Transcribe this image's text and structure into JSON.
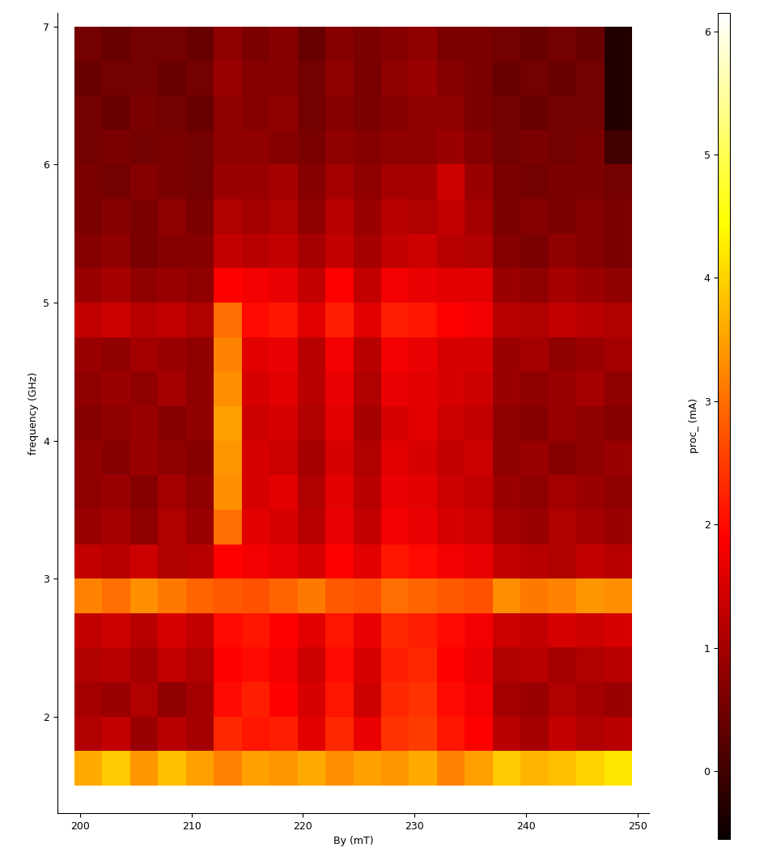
{
  "chart_data": {
    "type": "heatmap",
    "x_label": "By (mT)",
    "y_label": "frequency (GHz)",
    "colorbar_label": "proc_ (mA)",
    "xlim": [
      198,
      251
    ],
    "ylim": [
      1.3,
      7.1
    ],
    "xticks": [
      200,
      210,
      220,
      230,
      240,
      250
    ],
    "yticks": [
      2,
      3,
      4,
      5,
      6,
      7
    ],
    "colorbar_range": [
      -0.55,
      6.15
    ],
    "colorbar_ticks": [
      0,
      1,
      2,
      3,
      4,
      5,
      6
    ],
    "x_edges": [
      199.5,
      202,
      204.5,
      207,
      209.5,
      212,
      214.5,
      217,
      219.5,
      222,
      224.5,
      227,
      229.5,
      232,
      234.5,
      237,
      239.5,
      242,
      244.5,
      247,
      249.5
    ],
    "y_edges": [
      1.5,
      1.75,
      2.0,
      2.25,
      2.5,
      2.75,
      3.0,
      3.25,
      3.5,
      3.75,
      4.0,
      4.25,
      4.5,
      4.75,
      5.0,
      5.25,
      5.5,
      5.75,
      6.0,
      6.25,
      6.5,
      6.75,
      7.0
    ],
    "cells": [
      [
        3.6,
        3.9,
        3.4,
        3.8,
        3.5,
        3.2,
        3.5,
        3.4,
        3.6,
        3.3,
        3.5,
        3.4,
        3.6,
        3.2,
        3.5,
        3.9,
        3.7,
        3.8,
        4.0,
        4.2
      ],
      [
        1.1,
        1.3,
        0.9,
        1.2,
        1.0,
        2.3,
        2.1,
        2.2,
        1.6,
        2.3,
        1.7,
        2.4,
        2.5,
        2.1,
        1.9,
        1.2,
        1.0,
        1.3,
        1.1,
        1.2
      ],
      [
        1.0,
        0.9,
        1.1,
        0.8,
        1.0,
        2.0,
        2.2,
        1.9,
        1.5,
        2.1,
        1.4,
        2.3,
        2.4,
        2.0,
        1.8,
        1.0,
        0.9,
        1.1,
        1.0,
        0.9
      ],
      [
        1.1,
        1.2,
        1.0,
        1.3,
        1.1,
        1.9,
        2.0,
        1.8,
        1.4,
        2.0,
        1.5,
        2.2,
        2.3,
        1.9,
        1.7,
        1.1,
        1.2,
        1.0,
        1.1,
        1.2
      ],
      [
        1.3,
        1.4,
        1.2,
        1.5,
        1.3,
        2.0,
        2.1,
        1.9,
        1.6,
        2.1,
        1.7,
        2.3,
        2.2,
        2.0,
        1.8,
        1.4,
        1.3,
        1.5,
        1.4,
        1.5
      ],
      [
        3.2,
        3.0,
        3.3,
        3.1,
        2.9,
        2.8,
        2.7,
        2.9,
        3.1,
        2.8,
        2.7,
        3.0,
        2.9,
        2.8,
        2.7,
        3.3,
        3.1,
        3.2,
        3.4,
        3.3
      ],
      [
        1.3,
        1.2,
        1.4,
        1.1,
        1.2,
        1.9,
        1.8,
        1.7,
        1.5,
        1.9,
        1.6,
        2.1,
        2.0,
        1.8,
        1.7,
        1.3,
        1.2,
        1.1,
        1.3,
        1.2
      ],
      [
        0.9,
        1.0,
        0.8,
        1.1,
        0.9,
        3.0,
        1.6,
        1.5,
        1.2,
        1.7,
        1.3,
        1.8,
        1.7,
        1.5,
        1.4,
        1.0,
        0.9,
        1.1,
        1.0,
        0.9
      ],
      [
        0.8,
        0.9,
        0.7,
        1.0,
        0.8,
        3.3,
        1.5,
        1.6,
        1.1,
        1.6,
        1.2,
        1.7,
        1.6,
        1.4,
        1.3,
        0.9,
        0.8,
        1.0,
        0.9,
        0.8
      ],
      [
        0.8,
        0.7,
        0.9,
        0.8,
        0.7,
        3.4,
        1.5,
        1.4,
        1.0,
        1.5,
        1.1,
        1.6,
        1.5,
        1.3,
        1.4,
        0.8,
        0.9,
        0.7,
        0.8,
        0.9
      ],
      [
        0.7,
        0.8,
        0.9,
        0.7,
        0.8,
        3.5,
        1.4,
        1.5,
        1.1,
        1.6,
        1.0,
        1.5,
        1.6,
        1.4,
        1.3,
        0.8,
        0.7,
        0.9,
        0.8,
        0.7
      ],
      [
        0.8,
        0.9,
        0.8,
        1.0,
        0.8,
        3.3,
        1.5,
        1.6,
        1.2,
        1.7,
        1.1,
        1.7,
        1.6,
        1.5,
        1.4,
        0.9,
        0.8,
        0.9,
        1.0,
        0.8
      ],
      [
        0.9,
        0.8,
        1.0,
        0.9,
        0.8,
        3.2,
        1.6,
        1.7,
        1.2,
        1.8,
        1.2,
        1.8,
        1.7,
        1.5,
        1.5,
        0.9,
        1.0,
        0.8,
        0.9,
        1.0
      ],
      [
        1.3,
        1.4,
        1.2,
        1.3,
        1.1,
        3.0,
        2.0,
        2.1,
        1.6,
        2.2,
        1.6,
        2.2,
        2.1,
        1.9,
        1.8,
        1.2,
        1.1,
        1.3,
        1.2,
        1.1
      ],
      [
        0.9,
        1.0,
        0.8,
        0.9,
        0.8,
        1.9,
        1.8,
        1.7,
        1.3,
        1.9,
        1.3,
        1.8,
        1.7,
        1.6,
        1.6,
        0.9,
        0.8,
        1.0,
        0.9,
        0.8
      ],
      [
        0.7,
        0.8,
        0.6,
        0.7,
        0.7,
        1.3,
        1.2,
        1.3,
        1.0,
        1.3,
        1.0,
        1.3,
        1.4,
        1.2,
        1.1,
        0.7,
        0.6,
        0.8,
        0.7,
        0.6
      ],
      [
        0.6,
        0.7,
        0.6,
        0.8,
        0.6,
        1.1,
        1.0,
        1.1,
        0.8,
        1.2,
        0.9,
        1.2,
        1.1,
        1.3,
        1.0,
        0.6,
        0.7,
        0.6,
        0.7,
        0.6
      ],
      [
        0.6,
        0.5,
        0.7,
        0.6,
        0.5,
        0.9,
        0.9,
        1.0,
        0.7,
        1.0,
        0.8,
        1.0,
        1.0,
        1.4,
        0.9,
        0.6,
        0.5,
        0.6,
        0.6,
        0.5
      ],
      [
        0.5,
        0.6,
        0.5,
        0.6,
        0.5,
        0.8,
        0.8,
        0.7,
        0.6,
        0.8,
        0.7,
        0.8,
        0.8,
        0.9,
        0.7,
        0.5,
        0.6,
        0.5,
        0.6,
        0.0
      ],
      [
        0.5,
        0.4,
        0.6,
        0.5,
        0.4,
        0.8,
        0.7,
        0.8,
        0.5,
        0.7,
        0.6,
        0.7,
        0.8,
        0.8,
        0.6,
        0.5,
        0.4,
        0.5,
        0.5,
        -0.3
      ],
      [
        0.4,
        0.5,
        0.5,
        0.4,
        0.5,
        0.9,
        0.7,
        0.7,
        0.5,
        0.8,
        0.6,
        0.8,
        0.9,
        0.7,
        0.6,
        0.4,
        0.5,
        0.4,
        0.5,
        -0.3
      ],
      [
        0.5,
        0.4,
        0.5,
        0.5,
        0.4,
        0.8,
        0.6,
        0.7,
        0.4,
        0.7,
        0.6,
        0.7,
        0.8,
        0.6,
        0.6,
        0.5,
        0.4,
        0.5,
        0.4,
        -0.3
      ]
    ]
  }
}
